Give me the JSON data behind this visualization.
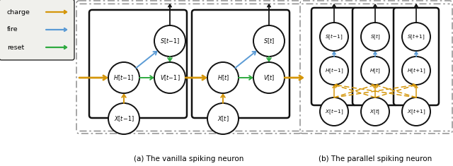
{
  "title_a": "(a) The vanilla spiking neuron",
  "title_b": "(b) The parallel spiking neuron",
  "color_charge": "#D4960A",
  "color_fire": "#5B9BD5",
  "color_reset": "#2EAA3F",
  "color_border": "#111111",
  "fig_width": 6.4,
  "fig_height": 2.35,
  "legend_items": [
    "charge",
    "fire",
    "reset"
  ]
}
